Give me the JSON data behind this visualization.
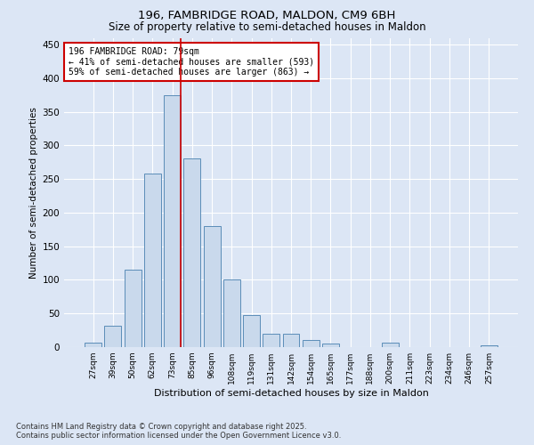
{
  "title1": "196, FAMBRIDGE ROAD, MALDON, CM9 6BH",
  "title2": "Size of property relative to semi-detached houses in Maldon",
  "xlabel": "Distribution of semi-detached houses by size in Maldon",
  "ylabel": "Number of semi-detached properties",
  "categories": [
    "27sqm",
    "39sqm",
    "50sqm",
    "62sqm",
    "73sqm",
    "85sqm",
    "96sqm",
    "108sqm",
    "119sqm",
    "131sqm",
    "142sqm",
    "154sqm",
    "165sqm",
    "177sqm",
    "188sqm",
    "200sqm",
    "211sqm",
    "223sqm",
    "234sqm",
    "246sqm",
    "257sqm"
  ],
  "values": [
    6,
    32,
    115,
    258,
    375,
    280,
    180,
    100,
    47,
    20,
    20,
    10,
    5,
    0,
    0,
    7,
    0,
    0,
    0,
    0,
    2
  ],
  "bar_color": "#c9d9ec",
  "bar_edge_color": "#5b8db8",
  "vline_bin_index": 4,
  "vline_color": "#cc0000",
  "annotation_title": "196 FAMBRIDGE ROAD: 79sqm",
  "annotation_line1": "← 41% of semi-detached houses are smaller (593)",
  "annotation_line2": "59% of semi-detached houses are larger (863) →",
  "annotation_box_color": "#ffffff",
  "annotation_box_edge": "#cc0000",
  "footnote1": "Contains HM Land Registry data © Crown copyright and database right 2025.",
  "footnote2": "Contains public sector information licensed under the Open Government Licence v3.0.",
  "bg_color": "#dce6f5",
  "plot_bg_color": "#dce6f5",
  "ylim": [
    0,
    460
  ],
  "yticks": [
    0,
    50,
    100,
    150,
    200,
    250,
    300,
    350,
    400,
    450
  ]
}
